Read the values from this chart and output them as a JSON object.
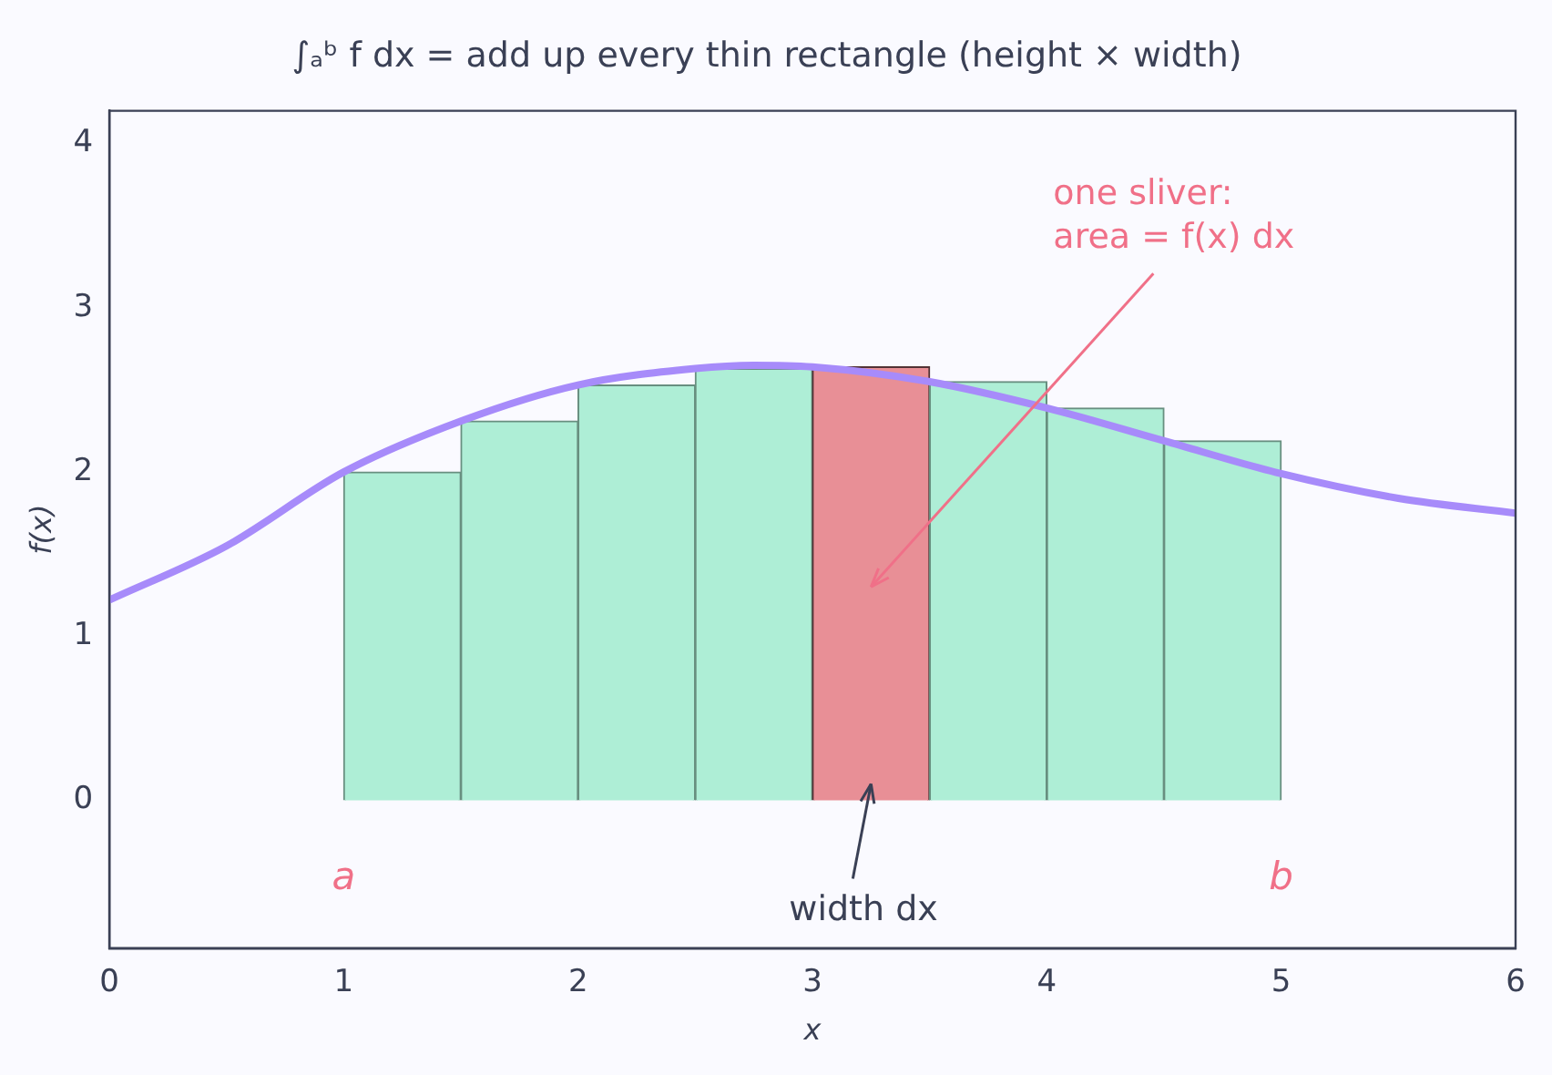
{
  "chart_data": {
    "type": "bar",
    "title": "∫ₐᵇ f dx = add up every thin rectangle (height × width)",
    "xlabel": "x",
    "ylabel": "f(x)",
    "xlim": [
      0,
      6
    ],
    "xticks": [
      0,
      1,
      2,
      3,
      4,
      5,
      6
    ],
    "ylim": [
      -0.9,
      4.2
    ],
    "yticks": [
      0,
      1,
      2,
      3,
      4
    ],
    "grid": false,
    "legend": false,
    "series": [
      {
        "x": [
          1.25,
          1.75,
          2.25,
          2.75,
          3.25,
          3.75,
          4.25,
          4.75
        ],
        "values": [
          2.0,
          2.31,
          2.53,
          2.63,
          2.64,
          2.55,
          2.39,
          2.19
        ],
        "colors": [
          "#aeeed6",
          "#aeeed6",
          "#aeeed6",
          "#aeeed6",
          "#e88f96",
          "#aeeed6",
          "#aeeed6",
          "#aeeed6"
        ]
      },
      {
        "type": "line",
        "color": "#a78bfa",
        "x": [
          0,
          0.5,
          1,
          1.5,
          2,
          2.5,
          2.75,
          3,
          3.5,
          4,
          4.5,
          5,
          5.5,
          6
        ],
        "values": [
          1.22,
          1.55,
          2.0,
          2.31,
          2.53,
          2.63,
          2.65,
          2.64,
          2.55,
          2.39,
          2.19,
          1.99,
          1.84,
          1.75
        ]
      }
    ],
    "annotations": [
      "one sliver:\narea = f(x) dx",
      "width dx",
      "a",
      "b"
    ]
  }
}
